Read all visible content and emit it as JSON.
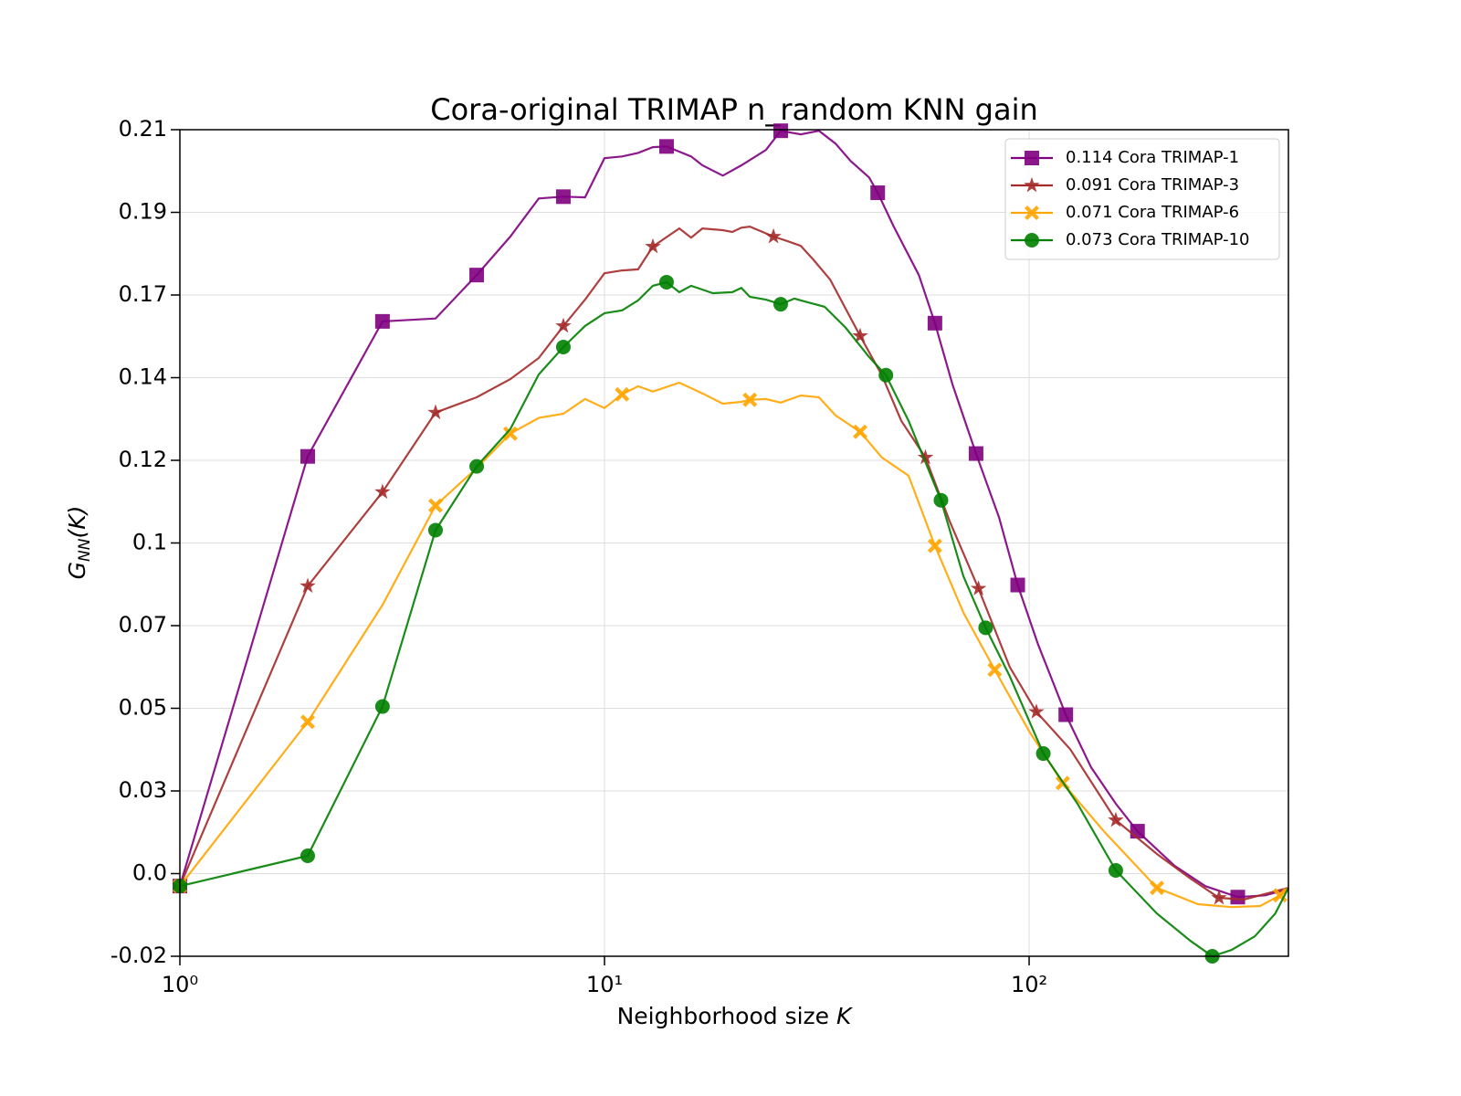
{
  "chart_data": {
    "type": "line",
    "title": "Cora-original TRIMAP n_random KNN gain",
    "xlabel": [
      "Neighborhood size ",
      "K"
    ],
    "ylabel": [
      "G",
      "NN",
      "(K)"
    ],
    "xscale": "log",
    "xlim": [
      1,
      408
    ],
    "ylim": [
      -0.0195,
      0.2125
    ],
    "xticks": [
      {
        "value": 1,
        "label": "10⁰"
      },
      {
        "value": 10,
        "label": "10¹"
      },
      {
        "value": 100,
        "label": "10²"
      }
    ],
    "yticks": [
      {
        "value": -0.0195,
        "label": "-0.02"
      },
      {
        "value": 0.0037,
        "label": "0.0"
      },
      {
        "value": 0.0269,
        "label": "0.03"
      },
      {
        "value": 0.0501,
        "label": "0.05"
      },
      {
        "value": 0.0733,
        "label": "0.07"
      },
      {
        "value": 0.0965,
        "label": "0.1"
      },
      {
        "value": 0.1197,
        "label": "0.12"
      },
      {
        "value": 0.1429,
        "label": "0.14"
      },
      {
        "value": 0.1661,
        "label": "0.17"
      },
      {
        "value": 0.1893,
        "label": "0.19"
      },
      {
        "value": 0.2125,
        "label": "0.21"
      }
    ],
    "grid": true,
    "legend": "upper right",
    "series": [
      {
        "name": "0.114 Cora TRIMAP-1",
        "color": "#800080",
        "marker": "square",
        "x": [
          1,
          2,
          3,
          4,
          5,
          6,
          7,
          8,
          9,
          10,
          11,
          12,
          13,
          14,
          16,
          17,
          19,
          21,
          24,
          26,
          29,
          32,
          35,
          38,
          42,
          44,
          48,
          55,
          60,
          66,
          75,
          85,
          94,
          105,
          122,
          140,
          160,
          180,
          220,
          260,
          310,
          360,
          408
        ],
        "values": [
          0.0002,
          0.1208,
          0.1587,
          0.1595,
          0.1717,
          0.1825,
          0.1932,
          0.1937,
          0.1935,
          0.2045,
          0.205,
          0.206,
          0.2076,
          0.2078,
          0.205,
          0.2025,
          0.1996,
          0.2025,
          0.2068,
          0.2122,
          0.2112,
          0.2122,
          0.2086,
          0.2037,
          0.1991,
          0.1948,
          0.1853,
          0.1717,
          0.1582,
          0.141,
          0.1216,
          0.1036,
          0.0847,
          0.068,
          0.0483,
          0.0335,
          0.0233,
          0.0156,
          0.0059,
          0.0002,
          -0.0029,
          -0.0024,
          -0.0006
        ],
        "markevery": [
          0,
          1,
          2,
          4,
          7,
          13,
          19,
          25,
          28,
          30,
          32,
          34,
          37,
          40
        ]
      },
      {
        "name": "0.091 Cora TRIMAP-3",
        "color": "#a52a2a",
        "marker": "star",
        "x": [
          1,
          2,
          3,
          4,
          5,
          6,
          7,
          8,
          9,
          10,
          11,
          12,
          13,
          15,
          16,
          17,
          19,
          20,
          21,
          22,
          25,
          27,
          29,
          31,
          34,
          40,
          45,
          50,
          57,
          65,
          76,
          90,
          104,
          125,
          160,
          200,
          240,
          280,
          320,
          408
        ],
        "values": [
          0.0002,
          0.0844,
          0.1108,
          0.1331,
          0.1374,
          0.1425,
          0.1484,
          0.1574,
          0.1648,
          0.1722,
          0.173,
          0.1733,
          0.1797,
          0.1848,
          0.1822,
          0.1848,
          0.1843,
          0.1838,
          0.185,
          0.1853,
          0.1825,
          0.1812,
          0.1799,
          0.1761,
          0.1704,
          0.1546,
          0.1436,
          0.1308,
          0.1205,
          0.1026,
          0.0837,
          0.0617,
          0.0491,
          0.0386,
          0.0187,
          0.0092,
          0.0023,
          -0.0031,
          -0.0036,
          -0.0003
        ],
        "markevery": [
          0,
          1,
          2,
          3,
          7,
          12,
          20,
          25,
          28,
          30,
          32,
          34,
          37
        ]
      },
      {
        "name": "0.071 Cora TRIMAP-6",
        "color": "#ffa500",
        "marker": "x",
        "x": [
          1,
          2,
          3,
          4,
          5,
          6,
          7,
          8,
          9,
          10,
          11,
          12,
          13,
          15,
          17,
          19,
          21,
          22,
          24,
          26,
          29,
          32,
          35,
          40,
          45,
          52,
          60,
          70,
          83,
          100,
          120,
          150,
          200,
          250,
          300,
          350,
          390,
          408
        ],
        "values": [
          0.0002,
          0.0463,
          0.0791,
          0.107,
          0.1175,
          0.1272,
          0.1316,
          0.1328,
          0.1369,
          0.1344,
          0.1382,
          0.1405,
          0.139,
          0.1415,
          0.1385,
          0.1356,
          0.1361,
          0.1367,
          0.1369,
          0.1359,
          0.1379,
          0.1374,
          0.1323,
          0.1277,
          0.1205,
          0.1154,
          0.0957,
          0.077,
          0.0609,
          0.0437,
          0.0291,
          0.0156,
          -0.0003,
          -0.0049,
          -0.0057,
          -0.0054,
          -0.0024,
          -0.0003
        ],
        "markevery": [
          0,
          1,
          3,
          5,
          10,
          17,
          23,
          26,
          28,
          30,
          32,
          36
        ]
      },
      {
        "name": "0.073 Cora TRIMAP-10",
        "color": "#008000",
        "marker": "circle",
        "x": [
          1,
          2,
          3,
          4,
          5,
          6,
          7,
          8,
          9,
          10,
          11,
          12,
          13,
          14,
          15,
          16,
          18,
          20,
          21,
          22,
          24,
          26,
          28,
          30,
          33,
          37,
          42,
          46,
          52,
          62,
          70,
          79,
          90,
          108,
          130,
          160,
          200,
          240,
          270,
          300,
          340,
          380,
          408
        ],
        "values": [
          0.0002,
          0.0087,
          0.0506,
          0.1001,
          0.118,
          0.1285,
          0.1438,
          0.1515,
          0.1574,
          0.161,
          0.1618,
          0.1646,
          0.1687,
          0.1697,
          0.1669,
          0.1687,
          0.1666,
          0.1669,
          0.1681,
          0.1656,
          0.1648,
          0.1635,
          0.1651,
          0.1641,
          0.1628,
          0.1569,
          0.1487,
          0.1436,
          0.1308,
          0.1085,
          0.0872,
          0.0727,
          0.0591,
          0.0374,
          0.0233,
          0.0046,
          -0.0075,
          -0.0152,
          -0.0195,
          -0.0177,
          -0.0139,
          -0.0075,
          -0.0003
        ],
        "markevery": [
          0,
          1,
          2,
          3,
          4,
          7,
          13,
          21,
          27,
          29,
          31,
          33,
          35,
          38
        ]
      }
    ]
  }
}
